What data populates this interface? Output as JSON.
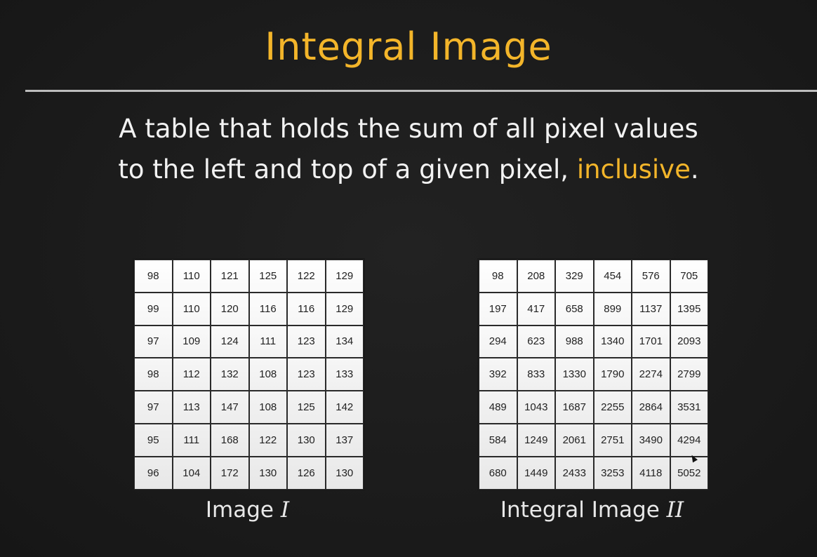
{
  "title": "Integral Image",
  "subtitle": {
    "line1": "A table that holds the sum of all pixel values",
    "line2_main": "to the left and top of a given pixel, ",
    "line2_highlight": "inclusive",
    "line2_end": "."
  },
  "colors": {
    "accent": "#f3b52a",
    "background": "#1c1c1c",
    "text": "#f2f2f2"
  },
  "image_table": {
    "caption_prefix": "Image ",
    "caption_var": "I",
    "rows": [
      [
        98,
        110,
        121,
        125,
        122,
        129
      ],
      [
        99,
        110,
        120,
        116,
        116,
        129
      ],
      [
        97,
        109,
        124,
        111,
        123,
        134
      ],
      [
        98,
        112,
        132,
        108,
        123,
        133
      ],
      [
        97,
        113,
        147,
        108,
        125,
        142
      ],
      [
        95,
        111,
        168,
        122,
        130,
        137
      ],
      [
        96,
        104,
        172,
        130,
        126,
        130
      ]
    ]
  },
  "integral_table": {
    "caption_prefix": "Integral Image ",
    "caption_var": "II",
    "rows": [
      [
        98,
        208,
        329,
        454,
        576,
        705
      ],
      [
        197,
        417,
        658,
        899,
        1137,
        1395
      ],
      [
        294,
        623,
        988,
        1340,
        1701,
        2093
      ],
      [
        392,
        833,
        1330,
        1790,
        2274,
        2799
      ],
      [
        489,
        1043,
        1687,
        2255,
        2864,
        3531
      ],
      [
        584,
        1249,
        2061,
        2751,
        3490,
        4294
      ],
      [
        680,
        1449,
        2433,
        3253,
        4118,
        5052
      ]
    ]
  }
}
